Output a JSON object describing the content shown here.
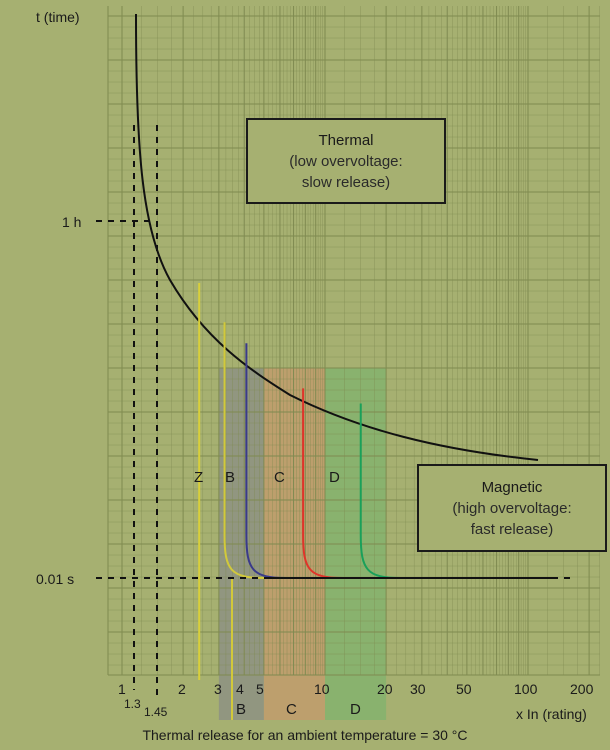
{
  "chart_data": {
    "type": "line",
    "ylabel": "t (time)",
    "xlabel": "x In (rating)",
    "x_ticks": [
      "1",
      "2",
      "3",
      "4",
      "5",
      "10",
      "20",
      "30",
      "50",
      "100",
      "200"
    ],
    "x_ticks_small": [
      "1.3",
      "1.45"
    ],
    "y_ticks": [
      "1 h",
      "0.01 s"
    ],
    "thermal_box": {
      "title": "Thermal",
      "line1": "(low overvoltage:",
      "line2": "slow release)"
    },
    "magnetic_box": {
      "title": "Magnetic",
      "line1": "(high overvoltage:",
      "line2": "fast release)"
    },
    "curve_letters": [
      "Z",
      "B",
      "C",
      "D"
    ],
    "band_letters": [
      "B",
      "C",
      "D"
    ],
    "caption": "Thermal release for an ambient temperature = 30 °C",
    "bands": [
      {
        "name": "B",
        "from": 3,
        "to": 5,
        "color": "#8a8e86"
      },
      {
        "name": "C",
        "from": 5,
        "to": 10,
        "color": "#c49a6c"
      },
      {
        "name": "D",
        "from": 10,
        "to": 20,
        "color": "#7fb36d"
      }
    ],
    "series": [
      {
        "name": "Z",
        "trip": 2.4,
        "color": "#d8cf3a"
      },
      {
        "name": "B",
        "trip": 3.2,
        "color": "#d2c93a"
      },
      {
        "name": "B",
        "trip": 4.1,
        "color": "#3a3a8a"
      },
      {
        "name": "C",
        "trip": 7.8,
        "color": "#e0342a"
      },
      {
        "name": "D",
        "trip": 15,
        "color": "#1aa05a"
      }
    ],
    "colors": {
      "background": "#a6b071",
      "grid": "#7f8a50"
    }
  }
}
